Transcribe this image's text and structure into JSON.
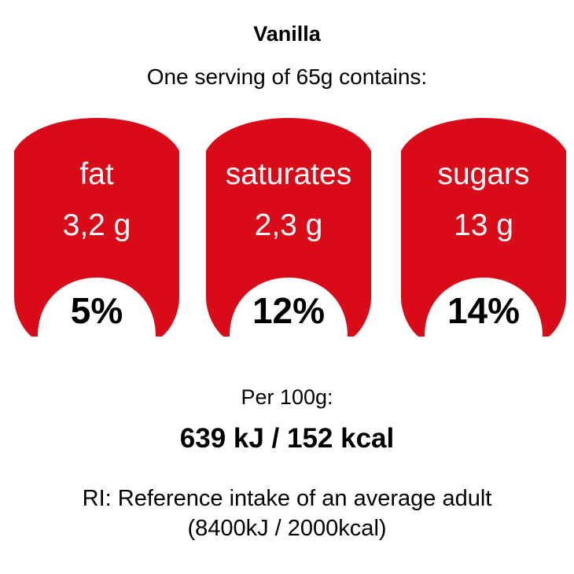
{
  "label": {
    "title": "Vanilla",
    "subtitle": "One serving of 65g contains:"
  },
  "nutrients": [
    {
      "name": "fat",
      "amount": "3,2 g",
      "percent": "5%"
    },
    {
      "name": "saturates",
      "amount": "2,3 g",
      "percent": "12%"
    },
    {
      "name": "sugars",
      "amount": "13 g",
      "percent": "14%"
    }
  ],
  "per_100g": {
    "label": "Per 100g:",
    "energy": "639 kJ / 152 kcal"
  },
  "reference": {
    "line1": "RI: Reference intake of an average adult",
    "line2": "(8400kJ / 2000kcal)"
  },
  "colors": {
    "badge_red": "#d90b18",
    "percent_background": "#ffffff"
  }
}
